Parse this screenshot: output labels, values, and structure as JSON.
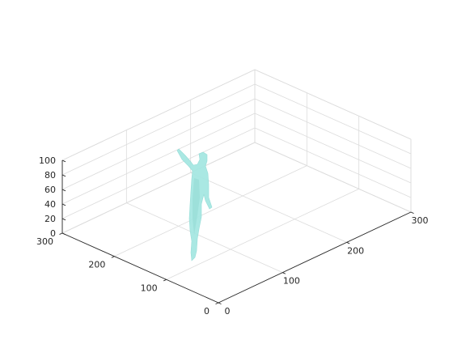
{
  "chart_data": {
    "type": "scatter",
    "title": "",
    "xlabel": "",
    "ylabel": "",
    "zlabel": "",
    "grid": true,
    "xlim": [
      0,
      300
    ],
    "ylim": [
      0,
      300
    ],
    "zlim": [
      0,
      100
    ],
    "xticks": [
      0,
      100,
      200,
      300
    ],
    "yticks": [
      0,
      100,
      200,
      300
    ],
    "zticks": [
      0,
      20,
      40,
      60,
      80,
      100
    ],
    "xtick_labels": [
      "0",
      "100",
      "200",
      "300"
    ],
    "ytick_labels": [
      "0",
      "100",
      "200",
      "300"
    ],
    "ztick_labels": [
      "0",
      "20",
      "40",
      "60",
      "80",
      "100"
    ],
    "series": [
      {
        "marker_color": "#a6e7e2",
        "description_points": "thin standing human figure point cloud (surface)",
        "x": [],
        "y": [],
        "z": []
      }
    ]
  },
  "colors": {
    "axis": "#262626",
    "grid": "#dcdcdc",
    "figure": "#a6e7e2"
  }
}
